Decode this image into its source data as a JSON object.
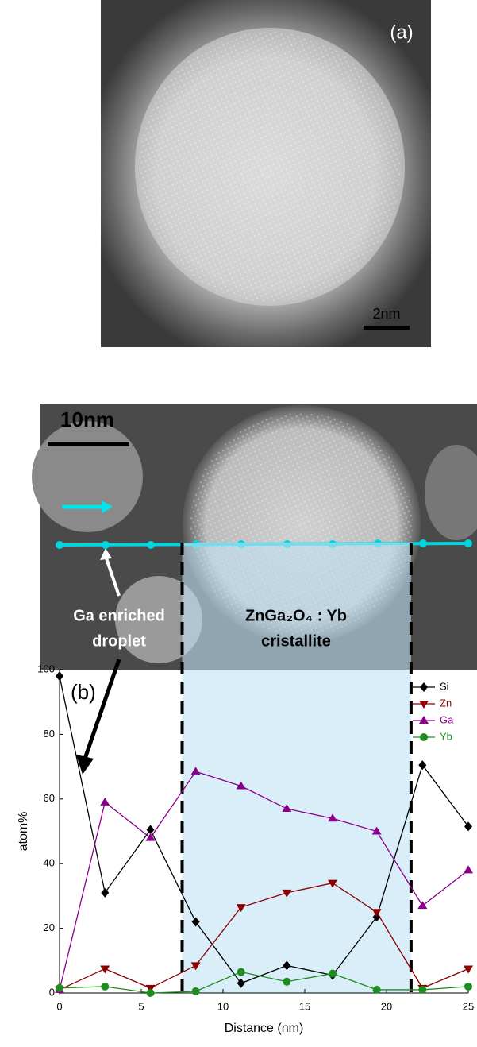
{
  "figure": {
    "panel_a_label": "(a)",
    "scale_bar_a": "2nm",
    "scale_bar_b": "10nm",
    "annotation_droplet": [
      "Ga enriched",
      "droplet"
    ],
    "annotation_crystallite": [
      "ZnGa₂O₄ : Yb",
      "cristallite"
    ]
  },
  "chart_data": {
    "type": "line",
    "panel_label": "(b)",
    "xlabel": "Distance (nm)",
    "ylabel": "atom%",
    "x": [
      0,
      2.78,
      5.56,
      8.33,
      11.1,
      13.9,
      16.7,
      19.4,
      22.2,
      25
    ],
    "series": [
      {
        "name": "Si",
        "color": "#000000",
        "marker": "diamond",
        "values": [
          98,
          31,
          50.5,
          22,
          3,
          8.5,
          5.5,
          23.5,
          70.5,
          51.5
        ]
      },
      {
        "name": "Zn",
        "color": "#8b0000",
        "marker": "triangle-down",
        "values": [
          1,
          7.5,
          1.5,
          8.5,
          26.5,
          31,
          34,
          25,
          1.5,
          7.5
        ]
      },
      {
        "name": "Ga",
        "color": "#8b008b",
        "marker": "triangle-up",
        "values": [
          1,
          59,
          48,
          68.5,
          64,
          57,
          54,
          50,
          27,
          38
        ]
      },
      {
        "name": "Yb",
        "color": "#1e8c1e",
        "marker": "circle",
        "values": [
          1.5,
          2,
          0,
          0.5,
          6.5,
          3.5,
          6,
          1,
          1,
          2
        ]
      }
    ],
    "shaded_region": [
      7.5,
      21.5
    ],
    "xlim": [
      0,
      25
    ],
    "ylim": [
      0,
      100
    ],
    "xticks": [
      0,
      5,
      10,
      15,
      20,
      25
    ],
    "yticks": [
      0,
      20,
      40,
      60,
      80,
      100
    ],
    "legend": "upper right"
  }
}
